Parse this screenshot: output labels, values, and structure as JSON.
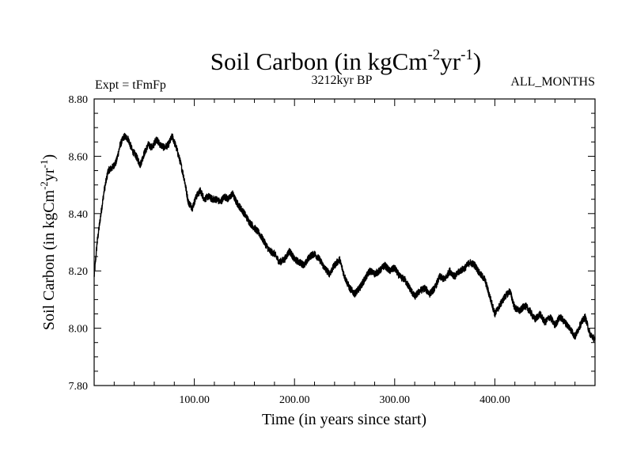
{
  "chart_data": {
    "type": "line",
    "title_main": "Soil Carbon (in kgCm",
    "title_sup1": "-2",
    "title_mid": "yr",
    "title_sup2": "-1",
    "title_end": ")",
    "subtitle_left": "Expt = tFmFp",
    "subtitle_center": "3212kyr BP",
    "subtitle_right": "ALL_MONTHS",
    "xlabel": "Time (in years since start)",
    "ylabel_main": "Soil Carbon (in kgCm",
    "ylabel_sup1": "-2",
    "ylabel_mid": "yr",
    "ylabel_sup2": "-1",
    "ylabel_end": ")",
    "xlim": [
      0,
      500
    ],
    "ylim": [
      7.8,
      8.8
    ],
    "xticks": [
      100,
      200,
      300,
      400
    ],
    "xtick_labels": [
      "100.00",
      "200.00",
      "300.00",
      "400.00"
    ],
    "yticks": [
      7.8,
      8.0,
      8.2,
      8.4,
      8.6,
      8.8
    ],
    "ytick_labels": [
      "7.80",
      "8.00",
      "8.20",
      "8.40",
      "8.60",
      "8.80"
    ],
    "line_color": "#000000",
    "noise_amplitude": 0.012,
    "series": [
      {
        "name": "Soil Carbon",
        "x": [
          0,
          3,
          6,
          10,
          14,
          18,
          22,
          26,
          30,
          34,
          38,
          42,
          46,
          50,
          54,
          58,
          62,
          66,
          70,
          74,
          78,
          82,
          86,
          90,
          94,
          98,
          102,
          106,
          110,
          114,
          118,
          122,
          126,
          130,
          134,
          138,
          142,
          146,
          150,
          155,
          160,
          165,
          170,
          175,
          180,
          185,
          190,
          195,
          200,
          205,
          210,
          215,
          220,
          225,
          230,
          235,
          240,
          245,
          250,
          255,
          260,
          265,
          270,
          275,
          280,
          285,
          290,
          295,
          300,
          305,
          310,
          315,
          320,
          325,
          330,
          335,
          340,
          345,
          350,
          355,
          360,
          365,
          370,
          375,
          380,
          385,
          390,
          395,
          400,
          405,
          410,
          415,
          420,
          425,
          430,
          435,
          440,
          445,
          450,
          455,
          460,
          465,
          470,
          475,
          480,
          485,
          490,
          495,
          500
        ],
        "values": [
          8.18,
          8.3,
          8.38,
          8.48,
          8.55,
          8.56,
          8.58,
          8.64,
          8.67,
          8.66,
          8.62,
          8.6,
          8.57,
          8.61,
          8.64,
          8.63,
          8.66,
          8.64,
          8.63,
          8.64,
          8.67,
          8.63,
          8.58,
          8.52,
          8.44,
          8.42,
          8.46,
          8.48,
          8.45,
          8.46,
          8.45,
          8.45,
          8.44,
          8.46,
          8.45,
          8.47,
          8.44,
          8.42,
          8.4,
          8.37,
          8.35,
          8.33,
          8.3,
          8.27,
          8.26,
          8.23,
          8.24,
          8.27,
          8.24,
          8.23,
          8.22,
          8.25,
          8.26,
          8.24,
          8.21,
          8.19,
          8.22,
          8.24,
          8.18,
          8.14,
          8.12,
          8.14,
          8.17,
          8.2,
          8.19,
          8.2,
          8.22,
          8.2,
          8.21,
          8.18,
          8.17,
          8.14,
          8.11,
          8.13,
          8.14,
          8.12,
          8.14,
          8.18,
          8.17,
          8.2,
          8.18,
          8.2,
          8.21,
          8.23,
          8.22,
          8.19,
          8.17,
          8.11,
          8.05,
          8.08,
          8.11,
          8.13,
          8.07,
          8.06,
          8.08,
          8.06,
          8.03,
          8.05,
          8.02,
          8.04,
          8.01,
          8.04,
          8.02,
          8.0,
          7.97,
          8.01,
          8.04,
          7.98,
          7.96
        ]
      }
    ]
  }
}
